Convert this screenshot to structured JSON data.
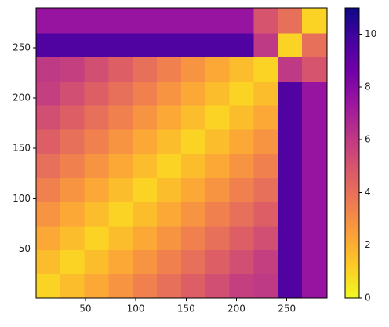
{
  "chart_data": {
    "type": "heatmap",
    "xbins": [
      1,
      25,
      49,
      73,
      97,
      121,
      145,
      169,
      193,
      217,
      241,
      265,
      290
    ],
    "ybins": [
      1,
      25,
      49,
      73,
      97,
      121,
      145,
      169,
      193,
      217,
      241,
      265,
      290
    ],
    "values": [
      [
        1,
        1.6,
        2.2,
        2.8,
        3.4,
        4,
        4.6,
        5.2,
        5.8,
        6,
        9.5,
        7.5
      ],
      [
        1.6,
        1,
        1.6,
        2.2,
        2.8,
        3.4,
        4,
        4.6,
        5.2,
        5.8,
        9.5,
        7.5
      ],
      [
        2.2,
        1.6,
        1,
        1.6,
        2.2,
        2.8,
        3.4,
        4,
        4.6,
        5.2,
        9.5,
        7.5
      ],
      [
        2.8,
        2.2,
        1.6,
        1,
        1.6,
        2.2,
        2.8,
        3.4,
        4,
        4.6,
        9.5,
        7.5
      ],
      [
        3.4,
        2.8,
        2.2,
        1.6,
        1,
        1.6,
        2.2,
        2.8,
        3.4,
        4,
        9.5,
        7.5
      ],
      [
        4,
        3.4,
        2.8,
        2.2,
        1.6,
        1,
        1.6,
        2.2,
        2.8,
        3.4,
        9.5,
        7.5
      ],
      [
        4.6,
        4,
        3.4,
        2.8,
        2.2,
        1.6,
        1,
        1.6,
        2.2,
        2.8,
        9.5,
        7.5
      ],
      [
        5.2,
        4.6,
        4,
        3.4,
        2.8,
        2.2,
        1.6,
        1,
        1.6,
        2.2,
        9.5,
        7.5
      ],
      [
        5.8,
        5.2,
        4.6,
        4,
        3.4,
        2.8,
        2.2,
        1.6,
        1,
        1.6,
        9.5,
        7.5
      ],
      [
        6,
        5.8,
        5.2,
        4.6,
        4,
        3.4,
        2.8,
        2.2,
        1.6,
        1,
        6,
        5
      ],
      [
        9.5,
        9.5,
        9.5,
        9.5,
        9.5,
        9.5,
        9.5,
        9.5,
        9.5,
        6,
        1,
        4
      ],
      [
        7.5,
        7.5,
        7.5,
        7.5,
        7.5,
        7.5,
        7.5,
        7.5,
        7.5,
        5,
        4,
        1
      ]
    ],
    "xlim": [
      1,
      290
    ],
    "ylim": [
      1,
      290
    ],
    "xticks": [
      50,
      100,
      150,
      200,
      250
    ],
    "yticks": [
      50,
      100,
      150,
      200,
      250
    ],
    "clim": [
      0,
      11
    ],
    "cticks": [
      0,
      2,
      4,
      6,
      8,
      10
    ],
    "colorscale": [
      "#f0f921",
      "#fdca26",
      "#fb9f3a",
      "#ed7953",
      "#d8576b",
      "#bd3786",
      "#9c179e",
      "#7201a8",
      "#46039f",
      "#0d0887"
    ]
  }
}
